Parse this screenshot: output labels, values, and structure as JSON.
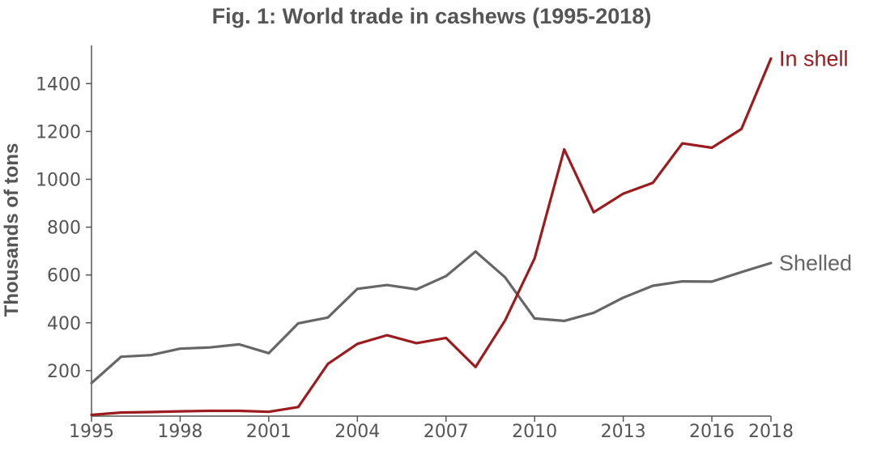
{
  "chart_data": {
    "type": "line",
    "title": "Fig. 1: World trade in cashews (1995-2018)",
    "xlabel": "",
    "ylabel": "Thousands of tons",
    "x": [
      1995,
      1996,
      1997,
      1998,
      1999,
      2000,
      2001,
      2002,
      2003,
      2004,
      2005,
      2006,
      2007,
      2008,
      2009,
      2010,
      2011,
      2012,
      2013,
      2014,
      2015,
      2016,
      2017,
      2018
    ],
    "xticks": [
      "1995",
      "1998",
      "2001",
      "2004",
      "2007",
      "2010",
      "2013",
      "2016",
      "2018"
    ],
    "yticks": [
      "200",
      "400",
      "600",
      "800",
      "1000",
      "1200",
      "1400"
    ],
    "xlim": [
      1995,
      2018
    ],
    "ylim": [
      10,
      1560
    ],
    "grid": false,
    "series": [
      {
        "name": "In shell",
        "color": "#9b1b1e",
        "values": [
          15,
          25,
          27,
          30,
          32,
          32,
          28,
          48,
          228,
          312,
          348,
          315,
          337,
          215,
          410,
          670,
          1125,
          862,
          940,
          985,
          1150,
          1132,
          1210,
          1505
        ]
      },
      {
        "name": "Shelled",
        "color": "#666666",
        "values": [
          148,
          258,
          265,
          292,
          297,
          310,
          273,
          398,
          422,
          542,
          558,
          540,
          595,
          698,
          590,
          418,
          408,
          442,
          505,
          555,
          573,
          572,
          612,
          650
        ]
      }
    ]
  }
}
